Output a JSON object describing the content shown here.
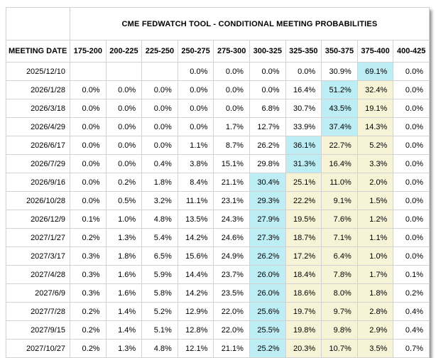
{
  "chart_data": {
    "type": "table",
    "title": "CME FEDWATCH TOOL - CONDITIONAL MEETING PROBABILITIES",
    "columns": [
      "MEETING DATE",
      "175-200",
      "200-225",
      "225-250",
      "250-275",
      "275-300",
      "300-325",
      "325-350",
      "350-375",
      "375-400",
      "400-425"
    ],
    "rows": [
      {
        "date": "2025/12/10",
        "values": [
          "",
          "",
          "",
          "0.0%",
          "0.0%",
          "0.0%",
          "0.0%",
          "30.9%",
          "69.1%",
          "0.0%"
        ],
        "blue": 8,
        "yellow": []
      },
      {
        "date": "2026/1/28",
        "values": [
          "0.0%",
          "0.0%",
          "0.0%",
          "0.0%",
          "0.0%",
          "0.0%",
          "16.4%",
          "51.2%",
          "32.4%",
          "0.0%"
        ],
        "blue": 7,
        "yellow": [
          8
        ]
      },
      {
        "date": "2026/3/18",
        "values": [
          "0.0%",
          "0.0%",
          "0.0%",
          "0.0%",
          "0.0%",
          "6.8%",
          "30.7%",
          "43.5%",
          "19.1%",
          "0.0%"
        ],
        "blue": 7,
        "yellow": [
          8
        ]
      },
      {
        "date": "2026/4/29",
        "values": [
          "0.0%",
          "0.0%",
          "0.0%",
          "0.0%",
          "1.7%",
          "12.7%",
          "33.9%",
          "37.4%",
          "14.3%",
          "0.0%"
        ],
        "blue": 7,
        "yellow": [
          8
        ]
      },
      {
        "date": "2026/6/17",
        "values": [
          "0.0%",
          "0.0%",
          "0.0%",
          "1.1%",
          "8.7%",
          "26.2%",
          "36.1%",
          "22.7%",
          "5.2%",
          "0.0%"
        ],
        "blue": 6,
        "yellow": [
          7,
          8
        ]
      },
      {
        "date": "2026/7/29",
        "values": [
          "0.0%",
          "0.0%",
          "0.4%",
          "3.8%",
          "15.1%",
          "29.8%",
          "31.3%",
          "16.4%",
          "3.3%",
          "0.0%"
        ],
        "blue": 6,
        "yellow": [
          7,
          8
        ]
      },
      {
        "date": "2026/9/16",
        "values": [
          "0.0%",
          "0.2%",
          "1.8%",
          "8.4%",
          "21.1%",
          "30.4%",
          "25.1%",
          "11.0%",
          "2.0%",
          "0.0%"
        ],
        "blue": 5,
        "yellow": [
          6,
          7,
          8
        ]
      },
      {
        "date": "2026/10/28",
        "values": [
          "0.0%",
          "0.5%",
          "3.2%",
          "11.1%",
          "23.1%",
          "29.3%",
          "22.2%",
          "9.1%",
          "1.5%",
          "0.0%"
        ],
        "blue": 5,
        "yellow": [
          6,
          7,
          8
        ]
      },
      {
        "date": "2026/12/9",
        "values": [
          "0.1%",
          "1.0%",
          "4.8%",
          "13.5%",
          "24.3%",
          "27.9%",
          "19.5%",
          "7.6%",
          "1.2%",
          "0.0%"
        ],
        "blue": 5,
        "yellow": [
          6,
          7,
          8
        ]
      },
      {
        "date": "2027/1/27",
        "values": [
          "0.2%",
          "1.3%",
          "5.4%",
          "14.2%",
          "24.6%",
          "27.3%",
          "18.7%",
          "7.1%",
          "1.1%",
          "0.0%"
        ],
        "blue": 5,
        "yellow": [
          6,
          7,
          8
        ]
      },
      {
        "date": "2027/3/17",
        "values": [
          "0.3%",
          "1.8%",
          "6.5%",
          "15.6%",
          "24.9%",
          "26.2%",
          "17.2%",
          "6.4%",
          "1.0%",
          "0.0%"
        ],
        "blue": 5,
        "yellow": [
          6,
          7,
          8
        ]
      },
      {
        "date": "2027/4/28",
        "values": [
          "0.3%",
          "1.6%",
          "5.9%",
          "14.4%",
          "23.7%",
          "26.0%",
          "18.4%",
          "7.8%",
          "1.7%",
          "0.1%"
        ],
        "blue": 5,
        "yellow": [
          6,
          7,
          8
        ]
      },
      {
        "date": "2027/6/9",
        "values": [
          "0.3%",
          "1.6%",
          "5.8%",
          "14.2%",
          "23.5%",
          "26.0%",
          "18.6%",
          "8.0%",
          "1.8%",
          "0.2%"
        ],
        "blue": 5,
        "yellow": [
          6,
          7,
          8
        ]
      },
      {
        "date": "2027/7/28",
        "values": [
          "0.2%",
          "1.4%",
          "5.2%",
          "12.9%",
          "22.0%",
          "25.6%",
          "19.7%",
          "9.7%",
          "2.8%",
          "0.4%"
        ],
        "blue": 5,
        "yellow": [
          6,
          7,
          8
        ]
      },
      {
        "date": "2027/9/15",
        "values": [
          "0.2%",
          "1.4%",
          "5.1%",
          "12.8%",
          "22.0%",
          "25.5%",
          "19.8%",
          "9.8%",
          "2.9%",
          "0.4%"
        ],
        "blue": 5,
        "yellow": [
          6,
          7,
          8
        ]
      },
      {
        "date": "2027/10/27",
        "values": [
          "0.2%",
          "1.3%",
          "4.8%",
          "12.1%",
          "21.1%",
          "25.2%",
          "20.3%",
          "10.7%",
          "3.5%",
          "0.7%"
        ],
        "blue": 5,
        "yellow": [
          6,
          7,
          8
        ]
      }
    ],
    "layout": {
      "legend": "none",
      "grid": "full-borders",
      "highlight_meaning": {
        "blue": "highest probability (modal) rate range for the meeting",
        "yellow": "ranges between the modal range and the 375-400 current range"
      }
    },
    "colors": {
      "highlight_blue": "#bdedf5",
      "highlight_yellow": "#f6f3d6",
      "grid_border": "#d2d2d2",
      "text": "#000000",
      "background": "#ffffff"
    }
  }
}
